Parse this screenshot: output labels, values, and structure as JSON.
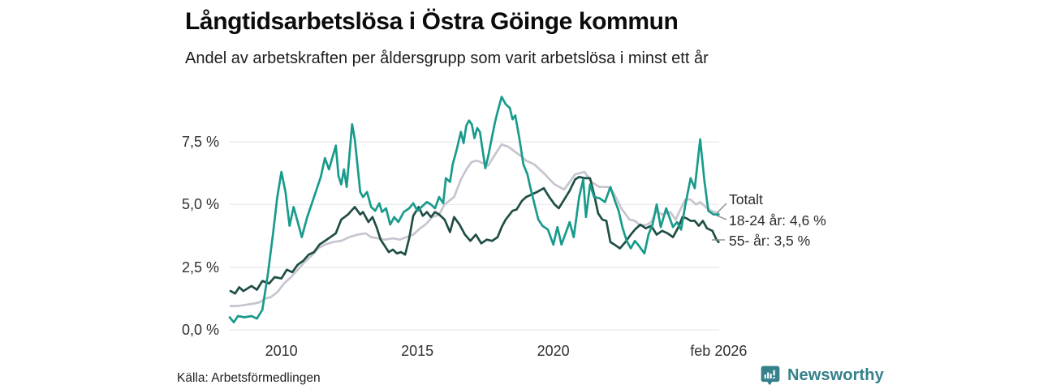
{
  "footer": {
    "source": "Källa: Arbetsförmedlingen",
    "brand": "Newsworthy",
    "brand_color": "#35808a"
  },
  "chart_data": {
    "type": "line",
    "title": "Långtidsarbetslösa i Östra Göinge kommun",
    "subtitle": "Andel av arbetskraften per åldersgrupp som varit arbetslösa i minst ett år",
    "xlabel": "",
    "ylabel": "",
    "unit": "%",
    "grid": "horizontal",
    "legend_position": "end-of-line-labels",
    "xlim": [
      2008.1,
      2026.1
    ],
    "ylim": [
      0,
      10
    ],
    "colors": {
      "totalt": "#c6c5d0",
      "age_18_24": "#189b8b",
      "age_55_plus": "#1f4e46",
      "gridline": "#e9e9ec",
      "connector": "#8a8a8a"
    },
    "yaxis": {
      "ticks": [
        {
          "value": 0,
          "label": "0,0 %"
        },
        {
          "value": 2.5,
          "label": "2,5 %"
        },
        {
          "value": 5,
          "label": "5,0 %"
        },
        {
          "value": 7.5,
          "label": "7,5 %"
        }
      ]
    },
    "xaxis": {
      "ticks": [
        {
          "value": 2010,
          "label": "2010"
        },
        {
          "value": 2015,
          "label": "2015"
        },
        {
          "value": 2020,
          "label": "2020"
        },
        {
          "value": 2026.08,
          "label": "feb 2026"
        }
      ]
    },
    "series": [
      {
        "name": "Totalt",
        "end_label": "Totalt",
        "color": "#c6c5d0",
        "points": [
          [
            2008.13,
            0.95
          ],
          [
            2008.4,
            0.95
          ],
          [
            2008.7,
            1.0
          ],
          [
            2009.0,
            1.05
          ],
          [
            2009.2,
            1.1
          ],
          [
            2009.4,
            1.25
          ],
          [
            2009.6,
            1.3
          ],
          [
            2009.85,
            1.5
          ],
          [
            2010.1,
            1.85
          ],
          [
            2010.35,
            2.1
          ],
          [
            2010.6,
            2.4
          ],
          [
            2010.85,
            2.7
          ],
          [
            2011.1,
            2.95
          ],
          [
            2011.35,
            3.25
          ],
          [
            2011.6,
            3.4
          ],
          [
            2011.9,
            3.5
          ],
          [
            2012.2,
            3.55
          ],
          [
            2012.5,
            3.7
          ],
          [
            2012.8,
            3.8
          ],
          [
            2013.1,
            3.85
          ],
          [
            2013.3,
            3.7
          ],
          [
            2013.55,
            3.65
          ],
          [
            2013.8,
            3.6
          ],
          [
            2014.1,
            3.65
          ],
          [
            2014.35,
            3.6
          ],
          [
            2014.6,
            3.7
          ],
          [
            2014.85,
            3.8
          ],
          [
            2015.1,
            4.05
          ],
          [
            2015.3,
            4.2
          ],
          [
            2015.55,
            4.5
          ],
          [
            2015.8,
            4.6
          ],
          [
            2016.0,
            5.0
          ],
          [
            2016.35,
            5.3
          ],
          [
            2016.6,
            6.0
          ],
          [
            2016.8,
            6.4
          ],
          [
            2017.0,
            6.7
          ],
          [
            2017.2,
            6.75
          ],
          [
            2017.4,
            6.65
          ],
          [
            2017.6,
            6.55
          ],
          [
            2017.8,
            6.9
          ],
          [
            2018.1,
            7.4
          ],
          [
            2018.35,
            7.3
          ],
          [
            2018.6,
            7.1
          ],
          [
            2018.85,
            6.9
          ],
          [
            2019.0,
            6.75
          ],
          [
            2019.3,
            6.6
          ],
          [
            2019.6,
            6.3
          ],
          [
            2020.05,
            5.8
          ],
          [
            2020.4,
            5.6
          ],
          [
            2020.8,
            6.2
          ],
          [
            2021.15,
            6.3
          ],
          [
            2021.4,
            5.9
          ],
          [
            2021.7,
            5.7
          ],
          [
            2022.0,
            5.7
          ],
          [
            2022.2,
            5.5
          ],
          [
            2022.5,
            4.85
          ],
          [
            2022.8,
            4.4
          ],
          [
            2023.0,
            4.35
          ],
          [
            2023.2,
            4.15
          ],
          [
            2023.45,
            4.2
          ],
          [
            2023.6,
            4.3
          ],
          [
            2023.8,
            4.75
          ],
          [
            2024.0,
            4.6
          ],
          [
            2024.3,
            4.7
          ],
          [
            2024.5,
            4.4
          ],
          [
            2024.85,
            5.2
          ],
          [
            2025.05,
            5.2
          ],
          [
            2025.25,
            5.0
          ],
          [
            2025.4,
            5.1
          ],
          [
            2025.6,
            4.9
          ],
          [
            2025.8,
            4.75
          ],
          [
            2026.08,
            4.65
          ]
        ]
      },
      {
        "name": "55- år",
        "end_label": "55- år: 3,5 %",
        "latest_value": "3,5 %",
        "color": "#1f4e46",
        "points": [
          [
            2008.13,
            1.55
          ],
          [
            2008.3,
            1.45
          ],
          [
            2008.45,
            1.7
          ],
          [
            2008.6,
            1.55
          ],
          [
            2008.9,
            1.75
          ],
          [
            2009.1,
            1.6
          ],
          [
            2009.3,
            1.95
          ],
          [
            2009.55,
            1.85
          ],
          [
            2009.75,
            2.1
          ],
          [
            2010.0,
            2.05
          ],
          [
            2010.2,
            2.4
          ],
          [
            2010.4,
            2.3
          ],
          [
            2010.6,
            2.6
          ],
          [
            2010.8,
            2.75
          ],
          [
            2011.0,
            3.0
          ],
          [
            2011.2,
            3.1
          ],
          [
            2011.4,
            3.4
          ],
          [
            2011.6,
            3.55
          ],
          [
            2011.8,
            3.7
          ],
          [
            2012.0,
            3.85
          ],
          [
            2012.2,
            4.4
          ],
          [
            2012.45,
            4.6
          ],
          [
            2012.7,
            4.9
          ],
          [
            2012.9,
            4.6
          ],
          [
            2013.0,
            4.7
          ],
          [
            2013.2,
            4.3
          ],
          [
            2013.35,
            4.5
          ],
          [
            2013.5,
            4.1
          ],
          [
            2013.65,
            3.6
          ],
          [
            2013.8,
            3.35
          ],
          [
            2013.95,
            3.1
          ],
          [
            2014.1,
            3.2
          ],
          [
            2014.25,
            3.05
          ],
          [
            2014.4,
            3.1
          ],
          [
            2014.55,
            3.0
          ],
          [
            2014.7,
            3.65
          ],
          [
            2014.85,
            4.55
          ],
          [
            2015.05,
            4.9
          ],
          [
            2015.2,
            4.55
          ],
          [
            2015.35,
            4.7
          ],
          [
            2015.5,
            4.5
          ],
          [
            2015.65,
            4.7
          ],
          [
            2015.8,
            4.6
          ],
          [
            2016.0,
            4.4
          ],
          [
            2016.2,
            3.9
          ],
          [
            2016.35,
            4.5
          ],
          [
            2016.55,
            4.2
          ],
          [
            2016.75,
            3.8
          ],
          [
            2016.95,
            3.55
          ],
          [
            2017.15,
            3.8
          ],
          [
            2017.35,
            3.45
          ],
          [
            2017.55,
            3.6
          ],
          [
            2017.75,
            3.55
          ],
          [
            2017.95,
            3.7
          ],
          [
            2018.1,
            4.1
          ],
          [
            2018.25,
            4.4
          ],
          [
            2018.5,
            4.75
          ],
          [
            2018.65,
            4.8
          ],
          [
            2018.85,
            5.15
          ],
          [
            2019.0,
            5.3
          ],
          [
            2019.2,
            5.4
          ],
          [
            2019.4,
            5.5
          ],
          [
            2019.65,
            5.65
          ],
          [
            2019.85,
            5.3
          ],
          [
            2020.05,
            5.0
          ],
          [
            2020.2,
            4.85
          ],
          [
            2020.4,
            5.2
          ],
          [
            2020.6,
            5.55
          ],
          [
            2020.8,
            6.0
          ],
          [
            2020.95,
            6.1
          ],
          [
            2021.15,
            6.05
          ],
          [
            2021.35,
            6.05
          ],
          [
            2021.5,
            5.4
          ],
          [
            2021.65,
            4.65
          ],
          [
            2021.8,
            4.4
          ],
          [
            2021.95,
            4.35
          ],
          [
            2022.1,
            3.5
          ],
          [
            2022.25,
            3.4
          ],
          [
            2022.45,
            3.25
          ],
          [
            2022.65,
            3.5
          ],
          [
            2022.85,
            3.8
          ],
          [
            2023.0,
            4.0
          ],
          [
            2023.2,
            4.2
          ],
          [
            2023.4,
            4.05
          ],
          [
            2023.6,
            4.15
          ],
          [
            2023.8,
            3.8
          ],
          [
            2024.0,
            3.95
          ],
          [
            2024.2,
            3.85
          ],
          [
            2024.4,
            3.7
          ],
          [
            2024.6,
            4.1
          ],
          [
            2024.75,
            4.5
          ],
          [
            2024.9,
            4.45
          ],
          [
            2025.05,
            4.35
          ],
          [
            2025.2,
            4.35
          ],
          [
            2025.35,
            4.15
          ],
          [
            2025.5,
            4.35
          ],
          [
            2025.65,
            4.05
          ],
          [
            2025.85,
            3.95
          ],
          [
            2026.0,
            3.6
          ],
          [
            2026.08,
            3.5
          ]
        ]
      },
      {
        "name": "18-24 år",
        "end_label": "18-24 år: 4,6 %",
        "latest_value": "4,6 %",
        "color": "#189b8b",
        "points": [
          [
            2008.1,
            0.5
          ],
          [
            2008.25,
            0.3
          ],
          [
            2008.4,
            0.55
          ],
          [
            2008.65,
            0.5
          ],
          [
            2008.9,
            0.55
          ],
          [
            2009.1,
            0.45
          ],
          [
            2009.3,
            0.8
          ],
          [
            2009.5,
            2.2
          ],
          [
            2009.7,
            3.9
          ],
          [
            2009.85,
            5.3
          ],
          [
            2010.0,
            6.3
          ],
          [
            2010.15,
            5.5
          ],
          [
            2010.3,
            4.15
          ],
          [
            2010.45,
            4.9
          ],
          [
            2010.6,
            4.3
          ],
          [
            2010.75,
            3.7
          ],
          [
            2010.95,
            4.5
          ],
          [
            2011.2,
            5.3
          ],
          [
            2011.45,
            6.1
          ],
          [
            2011.6,
            6.85
          ],
          [
            2011.75,
            6.4
          ],
          [
            2012.0,
            7.35
          ],
          [
            2012.1,
            6.15
          ],
          [
            2012.2,
            5.8
          ],
          [
            2012.3,
            6.4
          ],
          [
            2012.4,
            5.7
          ],
          [
            2012.6,
            8.2
          ],
          [
            2012.7,
            7.6
          ],
          [
            2012.9,
            5.5
          ],
          [
            2013.0,
            5.3
          ],
          [
            2013.15,
            5.5
          ],
          [
            2013.3,
            4.9
          ],
          [
            2013.45,
            4.75
          ],
          [
            2013.6,
            5.05
          ],
          [
            2013.7,
            4.7
          ],
          [
            2013.85,
            4.85
          ],
          [
            2014.0,
            4.2
          ],
          [
            2014.15,
            4.5
          ],
          [
            2014.3,
            4.3
          ],
          [
            2014.5,
            4.7
          ],
          [
            2014.7,
            4.85
          ],
          [
            2014.85,
            5.05
          ],
          [
            2015.0,
            4.75
          ],
          [
            2015.2,
            4.95
          ],
          [
            2015.35,
            5.1
          ],
          [
            2015.5,
            5.0
          ],
          [
            2015.65,
            4.85
          ],
          [
            2015.8,
            5.3
          ],
          [
            2015.95,
            5.05
          ],
          [
            2016.05,
            6.05
          ],
          [
            2016.2,
            5.9
          ],
          [
            2016.3,
            6.6
          ],
          [
            2016.45,
            7.2
          ],
          [
            2016.6,
            7.9
          ],
          [
            2016.7,
            7.45
          ],
          [
            2016.8,
            8.15
          ],
          [
            2016.9,
            8.35
          ],
          [
            2017.0,
            8.2
          ],
          [
            2017.1,
            7.65
          ],
          [
            2017.2,
            8.05
          ],
          [
            2017.3,
            7.9
          ],
          [
            2017.5,
            6.45
          ],
          [
            2017.6,
            6.9
          ],
          [
            2017.7,
            7.45
          ],
          [
            2017.85,
            8.25
          ],
          [
            2017.95,
            8.7
          ],
          [
            2018.1,
            9.3
          ],
          [
            2018.25,
            9.0
          ],
          [
            2018.4,
            8.85
          ],
          [
            2018.5,
            8.4
          ],
          [
            2018.6,
            8.55
          ],
          [
            2018.75,
            7.65
          ],
          [
            2018.9,
            6.6
          ],
          [
            2019.05,
            6.2
          ],
          [
            2019.15,
            5.7
          ],
          [
            2019.3,
            5.05
          ],
          [
            2019.45,
            4.4
          ],
          [
            2019.6,
            4.15
          ],
          [
            2019.8,
            4.0
          ],
          [
            2020.0,
            3.4
          ],
          [
            2020.15,
            4.1
          ],
          [
            2020.3,
            3.4
          ],
          [
            2020.6,
            4.3
          ],
          [
            2020.75,
            3.7
          ],
          [
            2020.95,
            5.3
          ],
          [
            2021.1,
            6.0
          ],
          [
            2021.2,
            4.5
          ],
          [
            2021.35,
            5.8
          ],
          [
            2021.5,
            5.3
          ],
          [
            2021.7,
            5.25
          ],
          [
            2021.9,
            5.1
          ],
          [
            2022.1,
            5.7
          ],
          [
            2022.25,
            5.2
          ],
          [
            2022.4,
            4.75
          ],
          [
            2022.55,
            4.05
          ],
          [
            2022.7,
            3.55
          ],
          [
            2022.85,
            3.25
          ],
          [
            2023.0,
            3.55
          ],
          [
            2023.15,
            3.35
          ],
          [
            2023.35,
            3.05
          ],
          [
            2023.5,
            3.8
          ],
          [
            2023.65,
            4.2
          ],
          [
            2023.8,
            5.0
          ],
          [
            2023.95,
            4.1
          ],
          [
            2024.15,
            4.85
          ],
          [
            2024.4,
            4.1
          ],
          [
            2024.55,
            4.3
          ],
          [
            2024.7,
            4.0
          ],
          [
            2024.85,
            4.95
          ],
          [
            2025.05,
            6.05
          ],
          [
            2025.2,
            5.65
          ],
          [
            2025.4,
            7.6
          ],
          [
            2025.55,
            6.0
          ],
          [
            2025.7,
            4.75
          ],
          [
            2025.9,
            4.6
          ],
          [
            2026.08,
            4.6
          ]
        ]
      }
    ]
  }
}
